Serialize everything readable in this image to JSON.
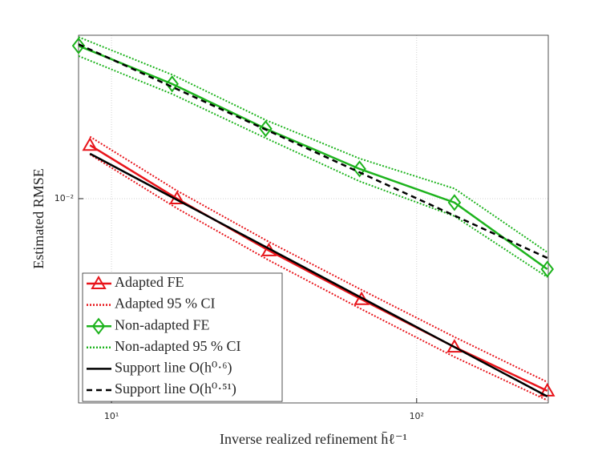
{
  "chart_data": {
    "type": "line",
    "x_label": "Inverse realized refinement h̄ℓ⁻¹",
    "y_label": "Estimated RMSE",
    "xscale": "log",
    "yscale": "log",
    "xlim": [
      7.8,
      270
    ],
    "ylim": [
      0.00174,
      0.0405
    ],
    "xticks": [
      {
        "value": 10,
        "label": "10¹"
      },
      {
        "value": 100,
        "label": "10²"
      }
    ],
    "yticks": [
      {
        "value": 0.01,
        "label": "10⁻²"
      }
    ],
    "grid": true,
    "legend": "lower left",
    "series": [
      {
        "name": "Adapted FE",
        "color": "#e8141a",
        "style": "solid",
        "marker": "triangle",
        "x": [
          8.5,
          16.4,
          32.8,
          66,
          133,
          268
        ],
        "values": [
          0.0158,
          0.01,
          0.00641,
          0.00422,
          0.00281,
          0.00193
        ]
      },
      {
        "name": "Adapted 95 % CI",
        "color": "#e8141a",
        "style": "dotted",
        "x": [
          8.5,
          16.4,
          32.8,
          66,
          133,
          268
        ],
        "values": [
          0.017,
          0.0107,
          0.00691,
          0.00458,
          0.00306,
          0.00208
        ]
      },
      {
        "name": "Non-adapted FE",
        "color": "#1db31d",
        "style": "solid",
        "marker": "diamond",
        "x": [
          7.8,
          15.8,
          32,
          65,
          133,
          268
        ],
        "values": [
          0.037,
          0.0267,
          0.0182,
          0.0129,
          0.00967,
          0.00547
        ]
      },
      {
        "name": "Non-adapted 95 % CI",
        "color": "#1db31d",
        "style": "dotted",
        "x": [
          7.8,
          15.8,
          32,
          65,
          133,
          268
        ],
        "values": [
          0.0399,
          0.0289,
          0.0196,
          0.0141,
          0.0109,
          0.00632
        ]
      },
      {
        "name": null,
        "color": "#1db31d",
        "style": "dotted",
        "x": [
          7.8,
          15.8,
          32,
          65,
          133,
          268
        ],
        "values": [
          0.0339,
          0.0245,
          0.0168,
          0.0116,
          0.00861,
          0.00511
        ]
      },
      {
        "name": null,
        "color": "#e8141a",
        "style": "dotted",
        "x": [
          8.5,
          16.4,
          32.8,
          66,
          133,
          268
        ],
        "values": [
          0.0146,
          0.0092,
          0.0059,
          0.00388,
          0.00258,
          0.00178
        ]
      },
      {
        "name": "Support line O(h⁰·⁶)",
        "color": "#000000",
        "style": "solid",
        "x": [
          8.5,
          268
        ],
        "values": [
          0.0147,
          0.00184
        ]
      },
      {
        "name": "Support line O(h⁰·⁵¹)",
        "color": "#000000",
        "style": "dashed",
        "x": [
          7.8,
          268
        ],
        "values": [
          0.0375,
          0.00602
        ]
      }
    ]
  }
}
